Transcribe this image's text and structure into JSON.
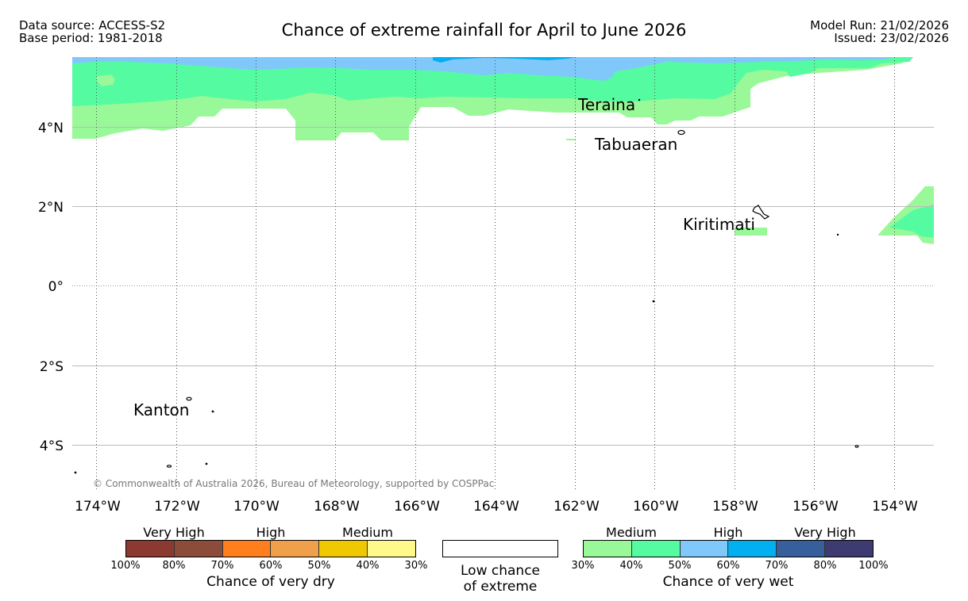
{
  "header": {
    "title": "Chance of extreme rainfall for April to June 2026",
    "data_source": "Data source: ACCESS-S2",
    "base_period": "Base period: 1981-2018",
    "model_run": "Model Run: 21/02/2026",
    "issued": "Issued: 23/02/2026"
  },
  "map": {
    "lat_labels": [
      "4°N",
      "2°N",
      "0°",
      "2°S",
      "4°S"
    ],
    "lon_labels": [
      "174°W",
      "172°W",
      "170°W",
      "168°W",
      "166°W",
      "164°W",
      "162°W",
      "160°W",
      "158°W",
      "156°W",
      "154°W"
    ],
    "places": {
      "teraina": "Teraina",
      "tabuaeran": "Tabuaeran",
      "kiritimati": "Kiritimati",
      "kanton": "Kanton"
    },
    "copyright": "© Commonwealth of Australia 2026, Bureau of Meteorology, supported by COSPPac",
    "colors": {
      "wet_medium_30_40": "#99f898",
      "wet_medium_40_50": "#55fba1",
      "wet_high_50_60": "#80c8fa",
      "wet_high_60_70": "#00b0f0"
    }
  },
  "legend": {
    "dry": {
      "categories": [
        "Very High",
        "High",
        "Medium"
      ],
      "ticks": [
        "100%",
        "80%",
        "70%",
        "60%",
        "50%",
        "40%",
        "30%"
      ],
      "colors": [
        "#8b3a32",
        "#8b4d3a",
        "#ff7f1f",
        "#f0a04a",
        "#efc800",
        "#fff88a"
      ],
      "title": "Chance of very dry"
    },
    "low": {
      "line1": "Low chance",
      "line2": "of extreme",
      "color": "#ffffff"
    },
    "wet": {
      "categories": [
        "Medium",
        "High",
        "Very High"
      ],
      "ticks": [
        "30%",
        "40%",
        "50%",
        "60%",
        "70%",
        "80%",
        "100%"
      ],
      "colors": [
        "#99f898",
        "#55fba1",
        "#80c8fa",
        "#00b0f0",
        "#365f9c",
        "#3e3a72"
      ],
      "title": "Chance of very wet"
    }
  }
}
